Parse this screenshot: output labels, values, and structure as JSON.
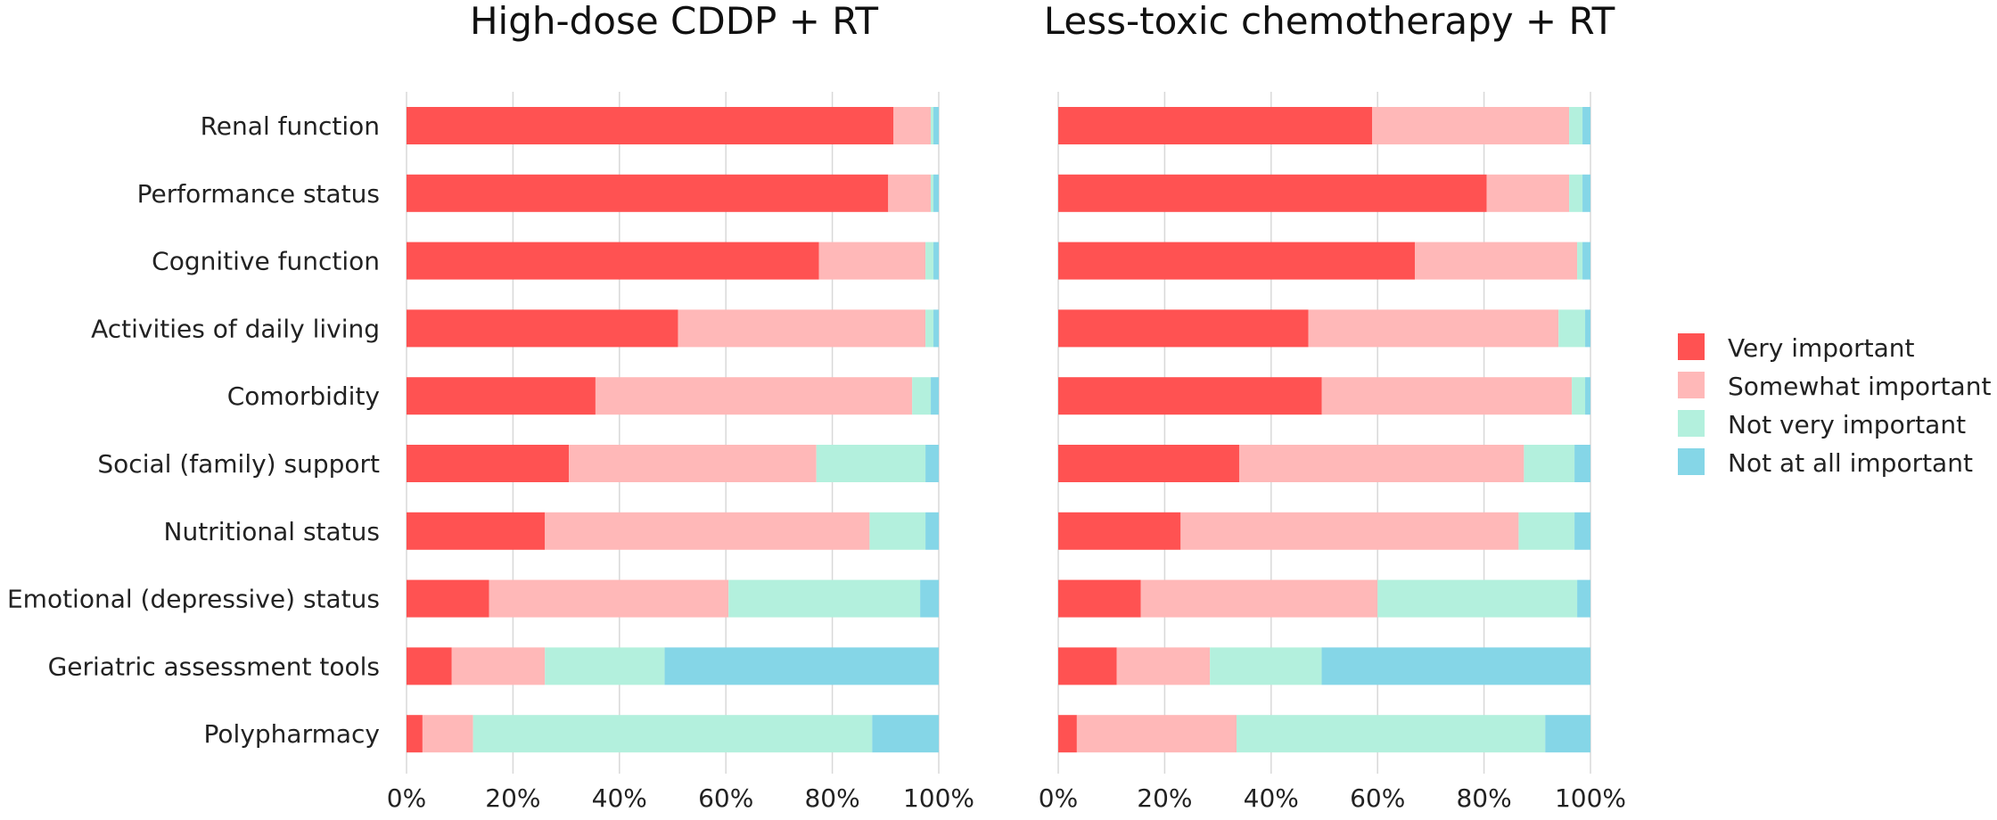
{
  "chart_data": {
    "type": "bar",
    "orientation": "horizontal",
    "stacked": "percent",
    "categories": [
      "Renal function",
      "Performance status",
      "Cognitive function",
      "Activities of daily living",
      "Comorbidity",
      "Social (family) support",
      "Nutritional status",
      "Emotional (depressive) status",
      "Geriatric assessment tools",
      "Polypharmacy"
    ],
    "legend": {
      "position": "right",
      "entries": [
        {
          "name": "Very important",
          "color": "#FF5252"
        },
        {
          "name": "Somewhat important",
          "color": "#FFB8B8"
        },
        {
          "name": "Not very important",
          "color": "#B3F0DD"
        },
        {
          "name": "Not at all important",
          "color": "#85D6E7"
        }
      ]
    },
    "xlim": [
      0,
      100
    ],
    "xticks": [
      "0%",
      "20%",
      "40%",
      "60%",
      "80%",
      "100%"
    ],
    "grid": true,
    "panels": [
      {
        "title": "High-dose CDDP + RT",
        "series": [
          {
            "name": "Very important",
            "values": [
              91.5,
              90.5,
              77.5,
              51.0,
              35.5,
              30.5,
              26.0,
              15.5,
              8.5,
              3.0
            ]
          },
          {
            "name": "Somewhat important",
            "values": [
              7.0,
              8.0,
              20.0,
              46.5,
              59.5,
              46.5,
              61.0,
              45.0,
              17.5,
              9.5
            ]
          },
          {
            "name": "Not very important",
            "values": [
              0.5,
              0.5,
              1.5,
              1.5,
              3.5,
              20.5,
              10.5,
              36.0,
              22.5,
              75.0
            ]
          },
          {
            "name": "Not at all important",
            "values": [
              1.0,
              1.0,
              1.0,
              1.0,
              1.5,
              2.5,
              2.5,
              3.5,
              51.5,
              12.5
            ]
          }
        ]
      },
      {
        "title": "Less-toxic chemotherapy + RT",
        "series": [
          {
            "name": "Very important",
            "values": [
              59.0,
              80.5,
              67.0,
              47.0,
              49.5,
              34.0,
              23.0,
              15.5,
              11.0,
              3.5
            ]
          },
          {
            "name": "Somewhat important",
            "values": [
              37.0,
              15.5,
              30.5,
              47.0,
              47.0,
              53.5,
              63.5,
              44.5,
              17.5,
              30.0
            ]
          },
          {
            "name": "Not very important",
            "values": [
              2.5,
              2.5,
              1.0,
              5.0,
              2.5,
              9.5,
              10.5,
              37.5,
              21.0,
              58.0
            ]
          },
          {
            "name": "Not at all important",
            "values": [
              1.5,
              1.5,
              1.5,
              1.0,
              1.0,
              3.0,
              3.0,
              2.5,
              50.5,
              8.5
            ]
          }
        ]
      }
    ]
  }
}
